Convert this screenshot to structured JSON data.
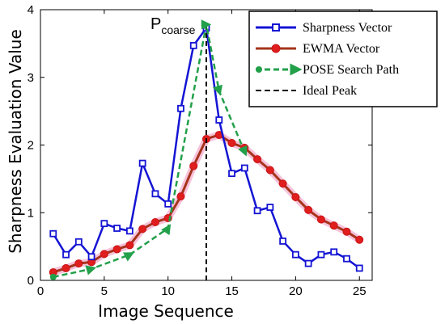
{
  "chart_data": {
    "type": "line",
    "xlabel": "Image Sequence",
    "ylabel": "Sharpness Evaluation Value",
    "xlim": [
      0,
      26
    ],
    "ylim": [
      0,
      4
    ],
    "xticks": [
      0,
      5,
      10,
      15,
      20,
      25
    ],
    "yticks": [
      0,
      1,
      2,
      3,
      4
    ],
    "grid": false,
    "legend_position": "top-right",
    "annotation": {
      "main": "P",
      "sub": "coarse",
      "x": 13
    },
    "series": [
      {
        "name": "Sharpness Vector",
        "color": "#1414d4",
        "marker": "square",
        "style": "solid",
        "x": [
          1,
          2,
          3,
          4,
          5,
          6,
          7,
          8,
          9,
          10,
          11,
          12,
          13,
          14,
          15,
          16,
          17,
          18,
          19,
          20,
          21,
          22,
          23,
          24,
          25
        ],
        "y": [
          0.69,
          0.38,
          0.57,
          0.35,
          0.84,
          0.77,
          0.73,
          1.73,
          1.28,
          1.13,
          2.54,
          3.47,
          3.73,
          2.37,
          1.58,
          1.66,
          1.03,
          1.08,
          0.58,
          0.38,
          0.25,
          0.38,
          0.42,
          0.32,
          0.18
        ]
      },
      {
        "name": "EWMA Vector",
        "color": "#a5341b",
        "marker": "circle",
        "style": "solid",
        "x": [
          1,
          2,
          3,
          4,
          5,
          6,
          7,
          8,
          9,
          10,
          11,
          12,
          13,
          14,
          15,
          16,
          17,
          18,
          19,
          20,
          21,
          22,
          23,
          24,
          25
        ],
        "y": [
          0.12,
          0.18,
          0.25,
          0.27,
          0.39,
          0.46,
          0.52,
          0.76,
          0.86,
          0.92,
          1.24,
          1.69,
          2.09,
          2.15,
          2.03,
          1.96,
          1.79,
          1.63,
          1.43,
          1.23,
          1.04,
          0.9,
          0.81,
          0.72,
          0.6
        ]
      },
      {
        "name": "POSE Search Path",
        "color": "#22a04a",
        "marker": "circle-arrow",
        "style": "dashed",
        "x": [
          1,
          4,
          7,
          10,
          13,
          14,
          16
        ],
        "y": [
          0.05,
          0.17,
          0.38,
          0.77,
          3.78,
          2.8,
          1.9
        ]
      },
      {
        "name": "Ideal Peak",
        "color": "#000000",
        "marker": "none",
        "style": "dashed",
        "x": [
          13,
          13
        ],
        "y": [
          0,
          3.78
        ]
      }
    ]
  }
}
